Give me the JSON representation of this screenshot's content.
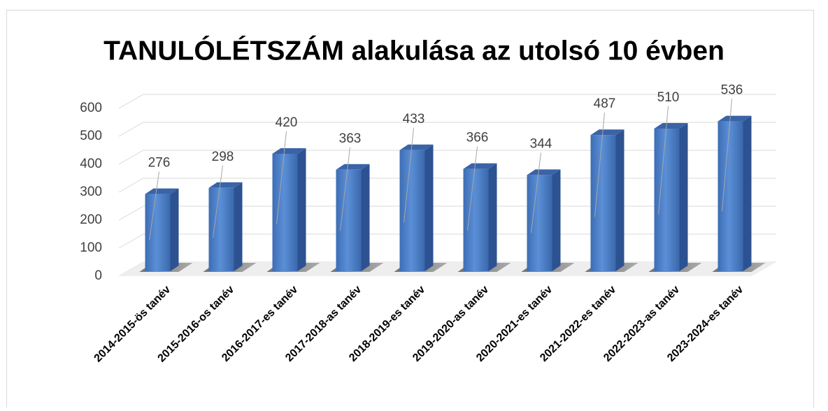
{
  "chart_data": {
    "type": "bar3d",
    "title": "TANULÓLÉTSZÁM alakulása az utolsó 10 évben",
    "categories": [
      "2014-2015-ös tanév",
      "2015-2016-os tanév",
      "2016-2017-es tanév",
      "2017-2018-as tanév",
      "2018-2019-es tanév",
      "2019-2020-as tanév",
      "2020-2021-es tanév",
      "2021-2022-es tanév",
      "2022-2023-as tanév",
      "2023-2024-es tanév"
    ],
    "values": [
      276,
      298,
      420,
      363,
      433,
      366,
      344,
      487,
      510,
      536
    ],
    "color": "#4a7cc4",
    "ylim": [
      0,
      600
    ],
    "yticks": [
      0,
      100,
      200,
      300,
      400,
      500,
      600
    ],
    "grid": true
  }
}
